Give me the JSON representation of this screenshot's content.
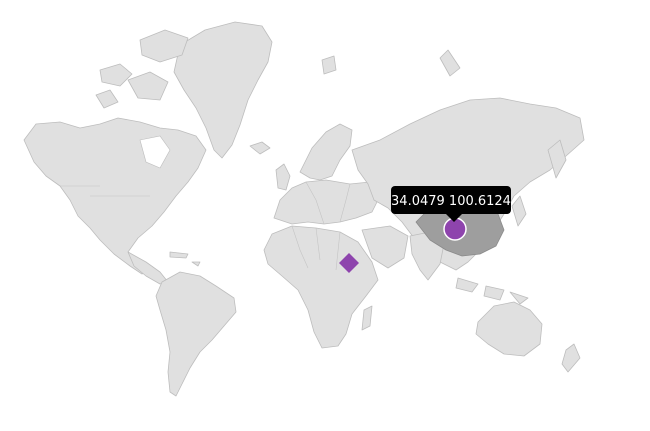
{
  "map": {
    "land_color": "#e0e0e0",
    "land_border_color": "#bdbdbd",
    "highlight_country": "China",
    "highlight_color": "#9e9e9e",
    "marker_color": "#8e44ad",
    "markers": [
      {
        "name": "china-marker",
        "shape": "circle"
      },
      {
        "name": "sudan-marker",
        "shape": "diamond"
      }
    ],
    "tooltip": {
      "text": "34.0479  100.6124",
      "background": "#000000"
    }
  }
}
